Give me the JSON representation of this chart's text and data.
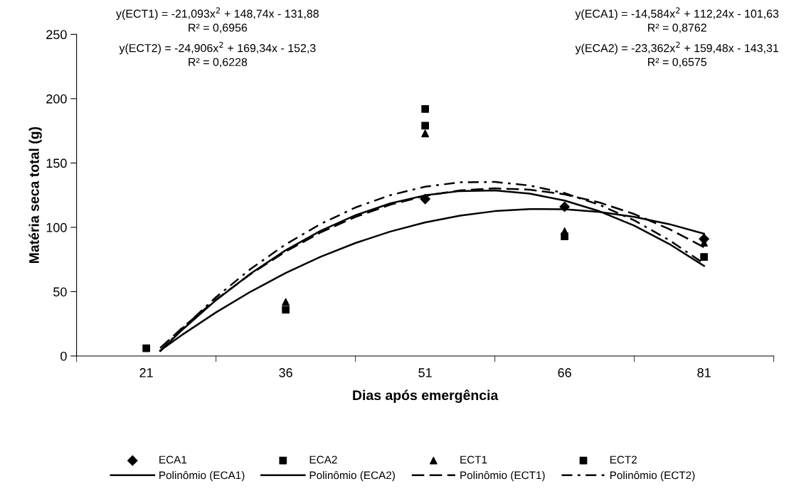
{
  "chart_data": {
    "type": "scatter",
    "xlabel": "Dias após emergência",
    "ylabel": "Matéria seca total (g)",
    "xlim": [
      13.5,
      88.5
    ],
    "xticks": [
      {
        "value": 13.5,
        "label": null
      },
      21,
      {
        "value": 28.5,
        "label": null
      },
      36,
      {
        "value": 43.5,
        "label": null
      },
      51,
      {
        "value": 58.5,
        "label": null
      },
      66,
      {
        "value": 73.5,
        "label": null
      },
      81,
      {
        "value": 88.5,
        "label": null
      }
    ],
    "ylim": [
      0,
      250
    ],
    "yticks": [
      0,
      50,
      100,
      150,
      200,
      250
    ],
    "grid": false,
    "legend": "bottom",
    "annotations": [
      "y(ECT1) = -21,093x$^{2}$ + 148,74x - 131,88\nR² = 0,6956",
      "y(ECT2) = -24,906x$^{2}$ + 169,34x - 152,3\nR² = 0,6228",
      "y(ECA1) = -14,584x$^{2}$ + 112,24x - 101,63\nR² = 0,8762",
      "y(ECA2) = -23,362x$^{2}$ + 159,48x - 143,31\nR² = 0,6575"
    ],
    "series": [
      {
        "name": "ECA1",
        "marker": "diamond",
        "color": "#000000",
        "x": [
          51,
          66,
          81
        ],
        "values": [
          122,
          116,
          91
        ]
      },
      {
        "name": "ECA2",
        "marker": "square",
        "color": "#000000",
        "x": [
          51
        ],
        "values": [
          179
        ]
      },
      {
        "name": "ECT1",
        "marker": "triangle",
        "color": "#000000",
        "x": [
          36,
          51,
          66,
          81
        ],
        "values": [
          42,
          173,
          97,
          88
        ]
      },
      {
        "name": "ECT2",
        "marker": "square",
        "color": "#000000",
        "x": [
          21,
          36,
          51,
          66,
          81
        ],
        "values": [
          6,
          36,
          192,
          93,
          77
        ]
      },
      {
        "name": "Polinômio (ECA1)",
        "type": "line",
        "line_style": "solid",
        "marker": "none",
        "color": "#000000",
        "x": [
          22.5,
          24.75,
          28.5,
          32.25,
          36,
          39.75,
          43.5,
          47.25,
          51,
          54.75,
          58.5,
          62.25,
          66,
          69.75,
          73.5,
          77.25,
          81
        ],
        "values": [
          4.2,
          15.9,
          33.9,
          50.1,
          64.5,
          77.1,
          87.8,
          96.7,
          103.8,
          109.1,
          112.6,
          114.2,
          114.0,
          112.0,
          108.1,
          102.5,
          95.0
        ]
      },
      {
        "name": "Polinômio (ECA2)",
        "type": "line",
        "line_style": "solid",
        "marker": "none",
        "color": "#000000",
        "x": [
          22.5,
          24.75,
          28.5,
          32.25,
          36,
          39.75,
          43.5,
          47.25,
          51,
          54.75,
          58.5,
          62.25,
          66,
          69.75,
          73.5,
          77.25,
          81
        ],
        "values": [
          3.9,
          19.5,
          43.4,
          64.2,
          82.2,
          97.3,
          109.4,
          118.6,
          124.9,
          128.2,
          128.7,
          126.2,
          120.8,
          112.5,
          101.3,
          87.1,
          70.0
        ]
      },
      {
        "name": "Polinômio (ECT1)",
        "type": "line",
        "line_style": "dashed",
        "marker": "none",
        "color": "#000000",
        "x": [
          22.5,
          24.75,
          28.5,
          32.25,
          36,
          39.75,
          43.5,
          47.25,
          51,
          54.75,
          58.5,
          62.25,
          66,
          69.75,
          73.5,
          77.25,
          81
        ],
        "values": [
          6.2,
          21.1,
          43.8,
          63.8,
          81.2,
          96.0,
          108.1,
          117.6,
          124.5,
          128.7,
          130.3,
          129.3,
          125.6,
          119.3,
          110.3,
          98.7,
          84.5
        ]
      },
      {
        "name": "Polinômio (ECT2)",
        "type": "line",
        "line_style": "dashdot",
        "marker": "none",
        "color": "#000000",
        "x": [
          22.5,
          24.75,
          28.5,
          32.25,
          36,
          39.75,
          43.5,
          47.25,
          51,
          54.75,
          58.5,
          62.25,
          66,
          69.75,
          73.5,
          77.25,
          81
        ],
        "values": [
          3.8,
          20.5,
          45.7,
          67.8,
          86.8,
          102.6,
          115.4,
          125.0,
          131.6,
          135.0,
          135.3,
          132.5,
          126.6,
          117.5,
          105.4,
          90.1,
          71.8
        ]
      }
    ]
  }
}
